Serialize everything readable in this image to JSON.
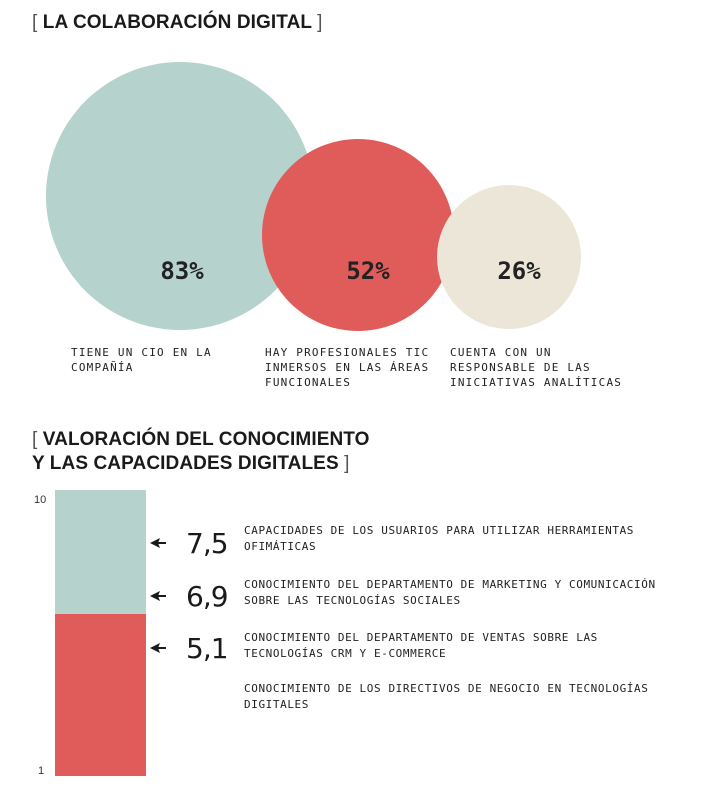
{
  "heading1": {
    "open": "[",
    "text": "LA COLABORACIÓN DIGITAL",
    "close": "]"
  },
  "heading2": {
    "open": "[",
    "line1": "VALORACIÓN DEL CONOCIMIENTO",
    "line2": "Y LAS CAPACIDADES DIGITALES",
    "close": "]"
  },
  "colors": {
    "teal": "#b5d2cd",
    "red": "#e05c5a",
    "cream": "#ebe6d8",
    "text": "#1a1a1a"
  },
  "chart_data": [
    {
      "type": "bubble",
      "title": "LA COLABORACIÓN DIGITAL",
      "series": [
        {
          "label": "83%",
          "value": 83,
          "caption": "TIENE UN CIO EN LA\nCOMPAÑÍA",
          "color": "#b5d2cd"
        },
        {
          "label": "52%",
          "value": 52,
          "caption": "HAY PROFESIONALES TIC\nINMERSOS EN LAS ÁREAS\nFUNCIONALES",
          "color": "#e05c5a"
        },
        {
          "label": "26%",
          "value": 26,
          "caption": "CUENTA CON UN\nRESPONSABLE DE LAS\nINICIATIVAS ANALÍTICAS",
          "color": "#ebe6d8"
        }
      ]
    },
    {
      "type": "bar",
      "title": "VALORACIÓN DEL CONOCIMIENTO Y LAS CAPACIDADES DIGITALES",
      "ylim": [
        1,
        10
      ],
      "ytick_labels": [
        "10",
        "1"
      ],
      "segments": [
        {
          "from": 1,
          "to": 6.1,
          "color": "#e05c5a"
        },
        {
          "from": 6.1,
          "to": 10,
          "color": "#b5d2cd"
        }
      ],
      "values": [
        {
          "value": 7.5,
          "label": "7,5",
          "description": "CAPACIDADES DE LOS USUARIOS PARA UTILIZAR HERRAMIENTAS OFIMÁTICAS"
        },
        {
          "value": 6.9,
          "label": "6,9",
          "description": "CONOCIMIENTO DEL DEPARTAMENTO DE MARKETING Y COMUNICACIÓN SOBRE LAS TECNOLOGÍAS SOCIALES"
        },
        {
          "value": 5.1,
          "label": "5,1",
          "description": "CONOCIMIENTO DEL DEPARTAMENTO DE VENTAS SOBRE LAS TECNOLOGÍAS CRM Y E-COMMERCE"
        },
        {
          "value": null,
          "label": "",
          "description": "CONOCIMIENTO DE LOS DIRECTIVOS DE NEGOCIO EN TECNOLOGÍAS DIGITALES"
        }
      ]
    }
  ]
}
